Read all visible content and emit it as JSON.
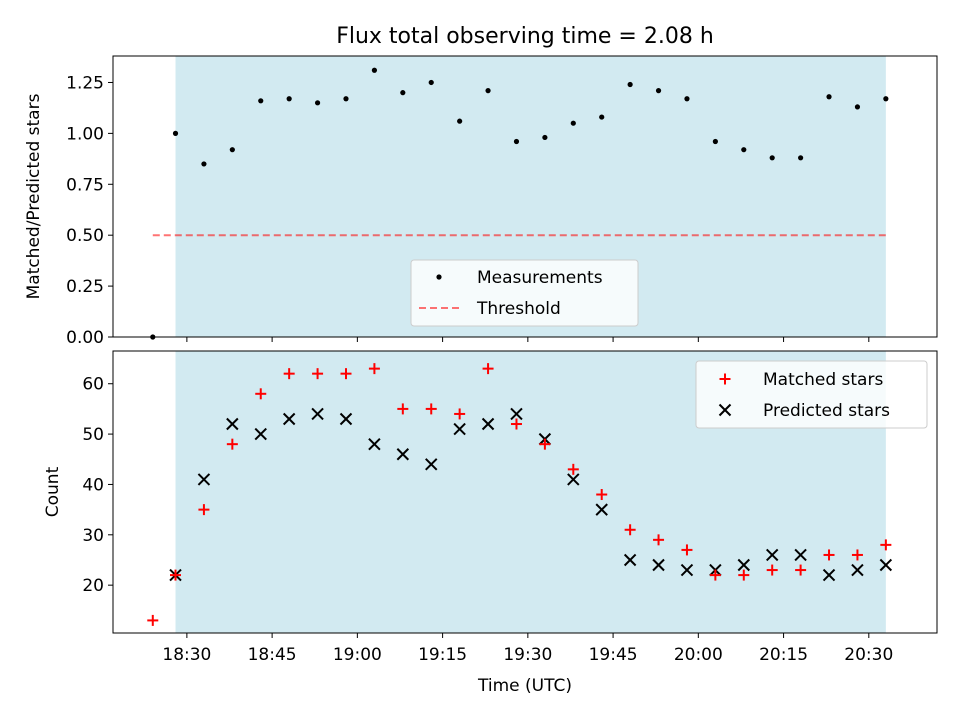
{
  "figure": {
    "title": "Flux total observing time = 2.08 h"
  },
  "colors": {
    "shade": "#add8e6",
    "measurement": "#000000",
    "threshold": "#ff0000",
    "matched": "#ff0000",
    "predicted": "#000000"
  },
  "chart_data": [
    {
      "type": "scatter",
      "panel": "top",
      "title": "Flux total observing time = 2.08 h",
      "xlabel": "",
      "ylabel": "Matched/Predicted stars",
      "xlim": [
        "18:17",
        "20:42"
      ],
      "ylim": [
        0,
        1.38
      ],
      "yticks": [
        0.0,
        0.25,
        0.5,
        0.75,
        1.0,
        1.25
      ],
      "ytick_labels": [
        "0.00",
        "0.25",
        "0.50",
        "0.75",
        "1.00",
        "1.25"
      ],
      "grid": false,
      "legend_position": "bottom-center",
      "shaded_interval": [
        "18:28",
        "20:33"
      ],
      "series": [
        {
          "name": "Measurements",
          "kind": "points",
          "x": [
            "18:24",
            "18:28",
            "18:33",
            "18:38",
            "18:43",
            "18:48",
            "18:53",
            "18:58",
            "19:03",
            "19:08",
            "19:13",
            "19:18",
            "19:23",
            "19:28",
            "19:33",
            "19:38",
            "19:43",
            "19:48",
            "19:53",
            "19:58",
            "20:03",
            "20:08",
            "20:13",
            "20:18",
            "20:23",
            "20:28",
            "20:33"
          ],
          "y": [
            0.0,
            1.0,
            0.85,
            0.92,
            1.16,
            1.17,
            1.15,
            1.17,
            1.31,
            1.2,
            1.25,
            1.06,
            1.21,
            0.96,
            0.98,
            1.05,
            1.08,
            1.24,
            1.21,
            1.17,
            0.96,
            0.92,
            0.88,
            0.88,
            1.18,
            1.13,
            1.17
          ]
        },
        {
          "name": "Threshold",
          "kind": "dashed-line",
          "x": [
            "18:24",
            "20:33"
          ],
          "y": [
            0.5,
            0.5
          ]
        }
      ]
    },
    {
      "type": "scatter",
      "panel": "bottom",
      "xlabel": "Time (UTC)",
      "ylabel": "Count",
      "xlim": [
        "18:17",
        "20:42"
      ],
      "ylim": [
        10.5,
        66.5
      ],
      "yticks": [
        20,
        30,
        40,
        50,
        60
      ],
      "ytick_labels": [
        "20",
        "30",
        "40",
        "50",
        "60"
      ],
      "xticks": [
        "18:30",
        "18:45",
        "19:00",
        "19:15",
        "19:30",
        "19:45",
        "20:00",
        "20:15",
        "20:30"
      ],
      "xtick_labels": [
        "18:30",
        "18:45",
        "19:00",
        "19:15",
        "19:30",
        "19:45",
        "20:00",
        "20:15",
        "20:30"
      ],
      "grid": false,
      "legend_position": "top-right",
      "shaded_interval": [
        "18:28",
        "20:33"
      ],
      "series": [
        {
          "name": "Matched stars",
          "marker": "+",
          "x": [
            "18:24",
            "18:28",
            "18:33",
            "18:38",
            "18:43",
            "18:48",
            "18:53",
            "18:58",
            "19:03",
            "19:08",
            "19:13",
            "19:18",
            "19:23",
            "19:28",
            "19:33",
            "19:38",
            "19:43",
            "19:48",
            "19:53",
            "19:58",
            "20:03",
            "20:08",
            "20:13",
            "20:18",
            "20:23",
            "20:28",
            "20:33"
          ],
          "y": [
            13,
            22,
            35,
            48,
            58,
            62,
            62,
            62,
            63,
            55,
            55,
            54,
            63,
            52,
            48,
            43,
            38,
            31,
            29,
            27,
            22,
            22,
            23,
            23,
            26,
            26,
            28
          ]
        },
        {
          "name": "Predicted stars",
          "marker": "x",
          "x": [
            "18:28",
            "18:33",
            "18:38",
            "18:43",
            "18:48",
            "18:53",
            "18:58",
            "19:03",
            "19:08",
            "19:13",
            "19:18",
            "19:23",
            "19:28",
            "19:33",
            "19:38",
            "19:43",
            "19:48",
            "19:53",
            "19:58",
            "20:03",
            "20:08",
            "20:13",
            "20:18",
            "20:23",
            "20:28",
            "20:33"
          ],
          "y": [
            22,
            41,
            52,
            50,
            53,
            54,
            53,
            48,
            46,
            44,
            51,
            52,
            54,
            49,
            41,
            35,
            25,
            24,
            23,
            23,
            24,
            26,
            26,
            22,
            23,
            24
          ]
        }
      ]
    }
  ]
}
